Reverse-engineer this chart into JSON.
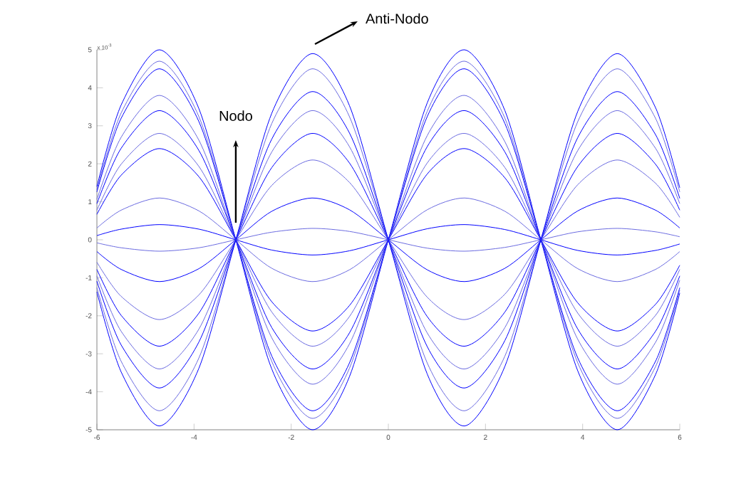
{
  "chart_data": {
    "type": "line",
    "xlim": [
      -6,
      6
    ],
    "ylim": [
      -5,
      5
    ],
    "xticks": [
      -6,
      -4,
      -2,
      0,
      2,
      4,
      6
    ],
    "yticks": [
      -5,
      -4,
      -3,
      -2,
      -1,
      0,
      1,
      2,
      3,
      4,
      5
    ],
    "annotations": [
      "x 10$^{-3}$",
      "Nodo",
      {
        "text": "Anti-Nodo",
        "x": -1.57,
        "y": 5
      }
    ],
    "x": [
      -6,
      -5.5,
      -4.71,
      -3.9,
      -3.14,
      -2.4,
      -1.57,
      -0.8,
      0,
      0.8,
      1.57,
      2.4,
      3.14,
      3.9,
      4.71,
      5.5,
      6
    ],
    "series": [
      {
        "color": "#0000ff",
        "values": [
          1.4,
          3.55,
          5,
          3.45,
          0,
          -3.4,
          -5,
          -3.6,
          0,
          3.6,
          5,
          3.4,
          0,
          -3.45,
          -5,
          -3.55,
          -1.4
        ]
      },
      {
        "color": "#6a6ae0",
        "values": [
          1.32,
          3.34,
          4.7,
          3.24,
          0,
          -3.2,
          -4.7,
          -3.38,
          0,
          3.38,
          4.7,
          3.2,
          0,
          -3.24,
          -4.7,
          -3.34,
          -1.32
        ]
      },
      {
        "color": "#0000ff",
        "values": [
          1.26,
          3.2,
          4.5,
          3.11,
          0,
          -3.06,
          -4.5,
          -3.24,
          0,
          3.24,
          4.5,
          3.06,
          0,
          -3.11,
          -4.5,
          -3.2,
          -1.26
        ]
      },
      {
        "color": "#6a6ae0",
        "values": [
          1.06,
          2.7,
          3.8,
          2.62,
          0,
          -2.58,
          -3.8,
          -2.74,
          0,
          2.74,
          3.8,
          2.58,
          0,
          -2.62,
          -3.8,
          -2.7,
          -1.06
        ]
      },
      {
        "color": "#0000ff",
        "values": [
          0.95,
          2.41,
          3.4,
          2.35,
          0,
          -2.31,
          -3.4,
          -2.45,
          0,
          2.45,
          3.4,
          2.31,
          0,
          -2.35,
          -3.4,
          -2.41,
          -0.95
        ]
      },
      {
        "color": "#6a6ae0",
        "values": [
          0.78,
          1.99,
          2.8,
          1.93,
          0,
          -1.9,
          -2.8,
          -2.02,
          0,
          2.02,
          2.8,
          1.9,
          0,
          -1.93,
          -2.8,
          -1.99,
          -0.78
        ]
      },
      {
        "color": "#0000ff",
        "values": [
          0.67,
          1.7,
          2.4,
          1.66,
          0,
          -1.63,
          -2.4,
          -1.73,
          0,
          1.73,
          2.4,
          1.63,
          0,
          -1.66,
          -2.4,
          -1.7,
          -0.67
        ]
      },
      {
        "color": "#6a6ae0",
        "values": [
          0.31,
          0.78,
          1.1,
          0.76,
          0,
          -0.75,
          -1.1,
          -0.79,
          0,
          0.79,
          1.1,
          0.75,
          0,
          -0.76,
          -1.1,
          -0.78,
          -0.31
        ]
      },
      {
        "color": "#0000ff",
        "values": [
          0.11,
          0.28,
          0.4,
          0.28,
          0,
          -0.27,
          -0.4,
          -0.29,
          0,
          0.29,
          0.4,
          0.27,
          0,
          -0.28,
          -0.4,
          -0.28,
          -0.11
        ]
      },
      {
        "color": "#6a6ae0",
        "values": [
          -0.08,
          -0.21,
          -0.3,
          -0.21,
          0,
          0.2,
          0.3,
          0.22,
          0,
          -0.22,
          -0.3,
          -0.2,
          0,
          0.21,
          0.3,
          0.21,
          0.08
        ]
      },
      {
        "color": "#0000ff",
        "values": [
          -0.31,
          -0.78,
          -1.1,
          -0.76,
          0,
          0.75,
          1.1,
          0.79,
          0,
          -0.79,
          -1.1,
          -0.75,
          0,
          0.76,
          1.1,
          0.78,
          0.31
        ]
      },
      {
        "color": "#6a6ae0",
        "values": [
          -0.59,
          -1.49,
          -2.1,
          -1.45,
          0,
          1.43,
          2.1,
          1.51,
          0,
          -1.51,
          -2.1,
          -1.43,
          0,
          1.45,
          2.1,
          1.49,
          0.59
        ]
      },
      {
        "color": "#0000ff",
        "values": [
          -0.78,
          -1.99,
          -2.8,
          -1.93,
          0,
          1.9,
          2.8,
          2.02,
          0,
          -2.02,
          -2.8,
          -1.9,
          0,
          1.93,
          2.8,
          1.99,
          0.78
        ]
      },
      {
        "color": "#6a6ae0",
        "values": [
          -0.95,
          -2.41,
          -3.4,
          -2.35,
          0,
          2.31,
          3.4,
          2.45,
          0,
          -2.45,
          -3.4,
          -2.31,
          0,
          2.35,
          3.4,
          2.41,
          0.95
        ]
      },
      {
        "color": "#0000ff",
        "values": [
          -1.09,
          -2.77,
          -3.9,
          -2.69,
          0,
          2.65,
          3.9,
          2.81,
          0,
          -2.81,
          -3.9,
          -2.65,
          0,
          2.69,
          3.9,
          2.77,
          1.09
        ]
      },
      {
        "color": "#6a6ae0",
        "values": [
          -1.26,
          -3.2,
          -4.5,
          -3.11,
          0,
          3.06,
          4.5,
          3.24,
          0,
          -3.24,
          -4.5,
          -3.06,
          0,
          3.11,
          4.5,
          3.2,
          1.26
        ]
      },
      {
        "color": "#0000ff",
        "values": [
          -1.37,
          -3.48,
          -4.9,
          -3.38,
          0,
          3.33,
          4.9,
          3.53,
          0,
          -3.53,
          -4.9,
          -3.33,
          0,
          3.38,
          4.9,
          3.48,
          1.37
        ]
      }
    ]
  }
}
